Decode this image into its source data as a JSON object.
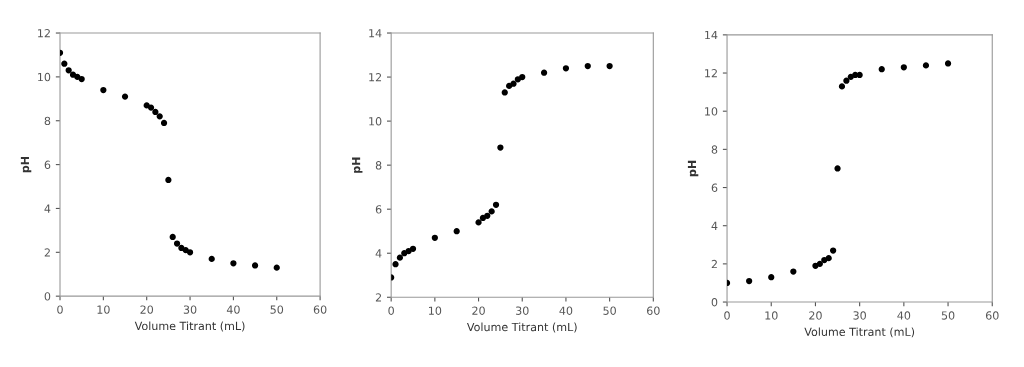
{
  "chart_data": [
    {
      "type": "scatter",
      "xlabel": "Volume Titrant (mL)",
      "ylabel": "pH",
      "marker": "circle",
      "grid": false,
      "xlim": [
        0,
        60
      ],
      "xticks": [
        0,
        10,
        20,
        30,
        40,
        50,
        60
      ],
      "ylim": [
        0,
        12
      ],
      "yticks": [
        0,
        2,
        4,
        6,
        8,
        10,
        12
      ],
      "series": [
        {
          "color": "#000000",
          "x": [
            0,
            1,
            2,
            3,
            4,
            5,
            10,
            15,
            20,
            21,
            22,
            23,
            24,
            25,
            26,
            27,
            28,
            29,
            30,
            35,
            40,
            45,
            50
          ],
          "values": [
            11.1,
            10.6,
            10.3,
            10.1,
            10.0,
            9.9,
            9.4,
            9.1,
            8.7,
            8.6,
            8.4,
            8.2,
            7.9,
            5.3,
            2.7,
            2.4,
            2.2,
            2.1,
            2.0,
            1.7,
            1.5,
            1.4,
            1.3
          ]
        }
      ]
    },
    {
      "type": "scatter",
      "xlabel": "Volume Titrant (mL)",
      "ylabel": "pH",
      "marker": "circle",
      "grid": false,
      "xlim": [
        0,
        60
      ],
      "xticks": [
        0,
        10,
        20,
        30,
        40,
        50,
        60
      ],
      "ylim": [
        2,
        14
      ],
      "yticks": [
        2,
        4,
        6,
        8,
        10,
        12,
        14
      ],
      "series": [
        {
          "color": "#000000",
          "x": [
            0,
            1,
            2,
            3,
            4,
            5,
            10,
            15,
            20,
            21,
            22,
            23,
            24,
            25,
            26,
            27,
            28,
            29,
            30,
            35,
            40,
            45,
            50
          ],
          "values": [
            2.9,
            3.5,
            3.8,
            4.0,
            4.1,
            4.2,
            4.7,
            5.0,
            5.4,
            5.6,
            5.7,
            5.9,
            6.2,
            8.8,
            11.3,
            11.6,
            11.7,
            11.9,
            12.0,
            12.2,
            12.4,
            12.5,
            12.5
          ]
        }
      ]
    },
    {
      "type": "scatter",
      "xlabel": "Volume Titrant (mL)",
      "ylabel": "pH",
      "marker": "circle",
      "grid": false,
      "xlim": [
        0,
        60
      ],
      "xticks": [
        0,
        10,
        20,
        30,
        40,
        50,
        60
      ],
      "ylim": [
        0,
        14
      ],
      "yticks": [
        0,
        2,
        4,
        6,
        8,
        10,
        12,
        14
      ],
      "series": [
        {
          "color": "#000000",
          "x": [
            0,
            5,
            10,
            15,
            20,
            21,
            22,
            23,
            24,
            25,
            26,
            27,
            28,
            29,
            30,
            35,
            40,
            45,
            50
          ],
          "values": [
            1.0,
            1.1,
            1.3,
            1.6,
            1.9,
            2.0,
            2.2,
            2.3,
            2.7,
            7.0,
            11.3,
            11.6,
            11.8,
            11.9,
            11.9,
            12.2,
            12.3,
            12.4,
            12.5
          ]
        }
      ]
    }
  ]
}
